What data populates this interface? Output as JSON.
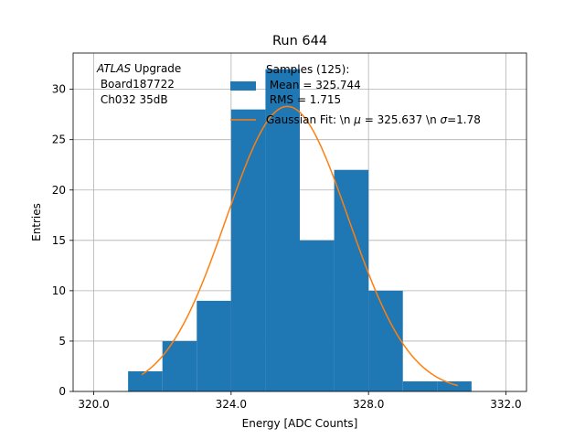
{
  "chart_data": {
    "type": "bar",
    "title": "Run 644",
    "xlabel": "Energy [ADC Counts]",
    "ylabel": "Entries",
    "xlim": [
      319.4,
      332.6
    ],
    "ylim": [
      0,
      33.6
    ],
    "xticks": [
      320.0,
      324.0,
      328.0,
      332.0
    ],
    "xtick_labels": [
      "320.0",
      "324.0",
      "328.0",
      "332.0"
    ],
    "yticks": [
      0,
      5,
      10,
      15,
      20,
      25,
      30
    ],
    "ytick_labels": [
      "0",
      "5",
      "10",
      "15",
      "20",
      "25",
      "30"
    ],
    "grid": true,
    "bar_color": "#1f77b4",
    "fit_color": "#ff7f0e",
    "bins": [
      {
        "left": 321.0,
        "right": 322.0,
        "count": 2
      },
      {
        "left": 322.0,
        "right": 323.0,
        "count": 5
      },
      {
        "left": 323.0,
        "right": 324.0,
        "count": 9
      },
      {
        "left": 324.0,
        "right": 325.0,
        "count": 28
      },
      {
        "left": 325.0,
        "right": 326.0,
        "count": 32
      },
      {
        "left": 326.0,
        "right": 327.0,
        "count": 15
      },
      {
        "left": 327.0,
        "right": 328.0,
        "count": 22
      },
      {
        "left": 328.0,
        "right": 329.0,
        "count": 10
      },
      {
        "left": 329.0,
        "right": 330.0,
        "count": 1
      },
      {
        "left": 330.0,
        "right": 331.0,
        "count": 1
      }
    ],
    "fit": {
      "mu": 325.637,
      "sigma": 1.78,
      "amplitude": 28.3,
      "x_start": 321.4,
      "x_end": 330.6
    },
    "annotation_lines": [
      "ATLAS",
      " Upgrade",
      " Board187722",
      " Ch032 35dB"
    ],
    "legend": {
      "samples_line1": "Samples (125):",
      "samples_line2": " Mean = 325.744",
      "samples_line3": " RMS = 1.715",
      "fit_label_part1": "Gaussian Fit: \\n ",
      "fit_mu_symbol": "μ",
      "fit_label_part2": " = 325.637 \\n ",
      "fit_sigma_symbol": "σ",
      "fit_label_part3": "=1.78"
    }
  }
}
